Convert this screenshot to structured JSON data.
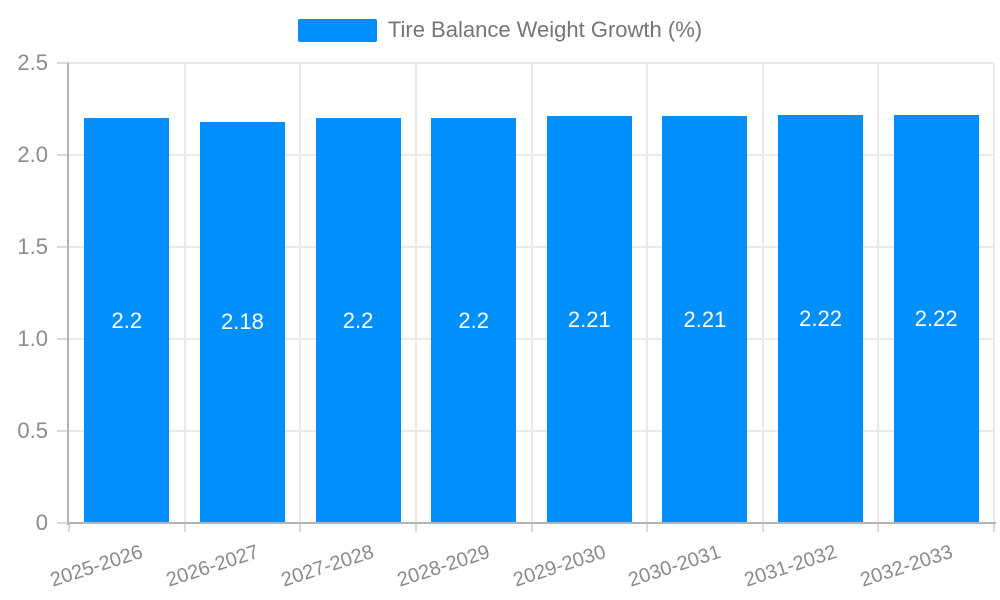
{
  "legend": {
    "label": "Tire Balance Weight Growth (%)"
  },
  "chart_data": {
    "type": "bar",
    "title": "Tire Balance Weight Growth (%)",
    "categories": [
      "2025-2026",
      "2026-2027",
      "2027-2028",
      "2028-2029",
      "2029-2030",
      "2030-2031",
      "2031-2032",
      "2032-2033"
    ],
    "values": [
      2.2,
      2.18,
      2.2,
      2.2,
      2.21,
      2.21,
      2.22,
      2.22
    ],
    "value_labels": [
      "2.2",
      "2.18",
      "2.2",
      "2.2",
      "2.21",
      "2.21",
      "2.22",
      "2.22"
    ],
    "xlabel": "",
    "ylabel": "",
    "ylim": [
      0,
      2.5
    ],
    "yticks": [
      0,
      0.5,
      1,
      1.5,
      2,
      2.5
    ],
    "ytick_labels": [
      "0",
      "0.5",
      "1.0",
      "1.5",
      "2.0",
      "2.5"
    ],
    "grid": true,
    "legend_position": "top",
    "x_label_rotation": -18,
    "colors": {
      "bar": "#008FFB",
      "bar_label": "#ffffff",
      "gridline": "#e9e9e9",
      "axis_line": "#b4b4b4",
      "tick": "#d9d9d9",
      "axis_label": "#8b8b8b",
      "legend_text": "#757575"
    }
  }
}
